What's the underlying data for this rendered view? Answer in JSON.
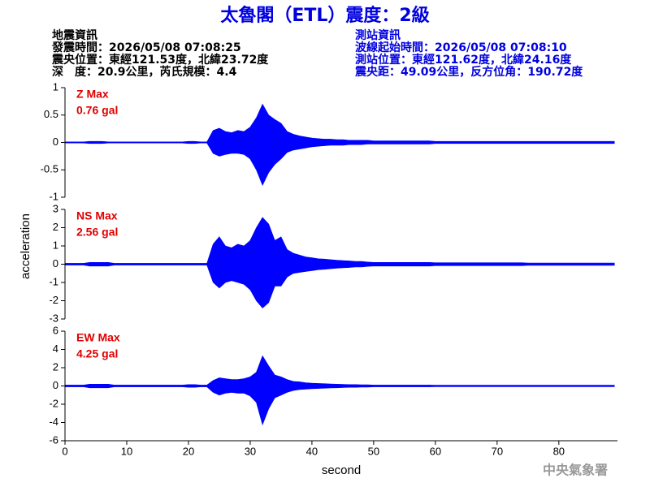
{
  "header": {
    "title": "太魯閣（ETL）震度：2級",
    "left": [
      "地震資訊",
      "發震時間：2026/05/08 07:08:25",
      "震央位置：東經121.53度，北緯23.72度",
      "深　度：20.9公里，芮氏規模：4.4"
    ],
    "right": [
      "測站資訊",
      "波線起始時間：2026/05/08 07:08:10",
      "測站位置：東經121.62度，北緯24.16度",
      "震央距：49.09公里，反方位角：190.72度"
    ],
    "footer": "中央氣象署"
  },
  "chart_data": [
    {
      "type": "area",
      "annotations": [
        "Z Max",
        "0.76 gal"
      ],
      "annotation_color": "#e00000",
      "x": [
        0,
        1,
        2,
        3,
        4,
        5,
        6,
        7,
        8,
        9,
        10,
        11,
        12,
        13,
        14,
        15,
        16,
        17,
        18,
        19,
        20,
        21,
        22,
        23,
        24,
        25,
        26,
        27,
        28,
        29,
        30,
        31,
        32,
        33,
        34,
        35,
        36,
        37,
        38,
        39,
        40,
        41,
        42,
        43,
        44,
        45,
        46,
        47,
        48,
        49,
        50,
        51,
        52,
        53,
        54,
        55,
        56,
        57,
        58,
        59,
        60,
        61,
        62,
        63,
        64,
        65,
        66,
        67,
        68,
        69,
        70,
        71,
        72,
        73,
        74,
        75,
        76,
        77,
        78,
        79,
        80,
        81,
        82,
        83,
        84,
        85,
        86,
        87,
        88,
        89
      ],
      "series": [
        {
          "color": "#0000ff",
          "values": [
            0.01,
            0.01,
            0.01,
            0.01,
            0.02,
            0.02,
            0.02,
            0.01,
            0.01,
            0.01,
            0.01,
            0.01,
            0.01,
            0.01,
            0.01,
            0.01,
            0.01,
            0.01,
            0.01,
            0.01,
            0.02,
            0.02,
            0.01,
            0.01,
            0.22,
            0.26,
            0.2,
            0.18,
            0.22,
            0.2,
            0.28,
            0.45,
            0.7,
            0.5,
            0.42,
            0.35,
            0.2,
            0.15,
            0.12,
            0.1,
            0.08,
            0.07,
            0.06,
            0.06,
            0.05,
            0.05,
            0.04,
            0.04,
            0.04,
            0.04,
            0.03,
            0.03,
            0.03,
            0.03,
            0.03,
            0.03,
            0.03,
            0.03,
            0.03,
            0.03,
            0.02,
            0.02,
            0.02,
            0.02,
            0.02,
            0.02,
            0.02,
            0.02,
            0.02,
            0.02,
            0.02,
            0.02,
            0.02,
            0.02,
            0.02,
            0.02,
            0.02,
            0.02,
            0.02,
            0.02,
            0.02,
            0.02,
            0.02,
            0.02,
            0.02,
            0.02,
            0.02,
            0.02,
            0.02,
            0.02
          ]
        },
        {
          "color": "#0000ff",
          "values": [
            -0.01,
            -0.01,
            -0.01,
            -0.01,
            -0.02,
            -0.02,
            -0.02,
            -0.01,
            -0.01,
            -0.01,
            -0.01,
            -0.01,
            -0.01,
            -0.01,
            -0.01,
            -0.01,
            -0.01,
            -0.01,
            -0.01,
            -0.01,
            -0.02,
            -0.02,
            -0.01,
            -0.01,
            -0.2,
            -0.25,
            -0.22,
            -0.2,
            -0.2,
            -0.22,
            -0.3,
            -0.5,
            -0.78,
            -0.55,
            -0.4,
            -0.3,
            -0.18,
            -0.14,
            -0.12,
            -0.1,
            -0.08,
            -0.07,
            -0.06,
            -0.05,
            -0.05,
            -0.05,
            -0.04,
            -0.04,
            -0.04,
            -0.03,
            -0.03,
            -0.03,
            -0.03,
            -0.03,
            -0.03,
            -0.03,
            -0.03,
            -0.03,
            -0.03,
            -0.03,
            -0.02,
            -0.02,
            -0.02,
            -0.02,
            -0.02,
            -0.02,
            -0.02,
            -0.02,
            -0.02,
            -0.02,
            -0.02,
            -0.02,
            -0.02,
            -0.02,
            -0.02,
            -0.02,
            -0.02,
            -0.02,
            -0.02,
            -0.02,
            -0.02,
            -0.02,
            -0.02,
            -0.02,
            -0.02,
            -0.02,
            -0.02,
            -0.02,
            -0.02,
            -0.02
          ]
        }
      ],
      "xlim": [
        0,
        89.5
      ],
      "ylim": [
        -1,
        1
      ],
      "yticks": [
        -1,
        -0.5,
        0,
        0.5,
        1
      ]
    },
    {
      "type": "area",
      "annotations": [
        "NS Max",
        "2.56 gal"
      ],
      "annotation_color": "#e00000",
      "ylabel": "acceleration",
      "x": [
        0,
        1,
        2,
        3,
        4,
        5,
        6,
        7,
        8,
        9,
        10,
        11,
        12,
        13,
        14,
        15,
        16,
        17,
        18,
        19,
        20,
        21,
        22,
        23,
        24,
        25,
        26,
        27,
        28,
        29,
        30,
        31,
        32,
        33,
        34,
        35,
        36,
        37,
        38,
        39,
        40,
        41,
        42,
        43,
        44,
        45,
        46,
        47,
        48,
        49,
        50,
        51,
        52,
        53,
        54,
        55,
        56,
        57,
        58,
        59,
        60,
        61,
        62,
        63,
        64,
        65,
        66,
        67,
        68,
        69,
        70,
        71,
        72,
        73,
        74,
        75,
        76,
        77,
        78,
        79,
        80,
        81,
        82,
        83,
        84,
        85,
        86,
        87,
        88,
        89
      ],
      "series": [
        {
          "color": "#0000ff",
          "values": [
            0.05,
            0.05,
            0.05,
            0.05,
            0.1,
            0.1,
            0.1,
            0.1,
            0.05,
            0.05,
            0.05,
            0.05,
            0.05,
            0.05,
            0.05,
            0.05,
            0.05,
            0.05,
            0.05,
            0.05,
            0.05,
            0.05,
            0.05,
            0.05,
            1.1,
            1.5,
            1.0,
            0.9,
            1.1,
            1.0,
            1.3,
            2.0,
            2.56,
            2.2,
            1.3,
            1.5,
            0.8,
            0.6,
            0.5,
            0.4,
            0.35,
            0.3,
            0.28,
            0.25,
            0.22,
            0.2,
            0.18,
            0.15,
            0.15,
            0.12,
            0.1,
            0.1,
            0.1,
            0.1,
            0.1,
            0.1,
            0.1,
            0.1,
            0.1,
            0.1,
            0.08,
            0.08,
            0.08,
            0.08,
            0.08,
            0.08,
            0.08,
            0.08,
            0.08,
            0.08,
            0.08,
            0.08,
            0.08,
            0.08,
            0.08,
            0.06,
            0.06,
            0.06,
            0.06,
            0.06,
            0.06,
            0.06,
            0.06,
            0.06,
            0.06,
            0.06,
            0.06,
            0.06,
            0.06,
            0.06
          ]
        },
        {
          "color": "#0000ff",
          "values": [
            -0.05,
            -0.05,
            -0.05,
            -0.05,
            -0.1,
            -0.1,
            -0.1,
            -0.1,
            -0.05,
            -0.05,
            -0.05,
            -0.05,
            -0.05,
            -0.05,
            -0.05,
            -0.05,
            -0.05,
            -0.05,
            -0.05,
            -0.05,
            -0.05,
            -0.05,
            -0.05,
            -0.05,
            -1.0,
            -1.3,
            -1.0,
            -0.9,
            -1.0,
            -1.1,
            -1.4,
            -2.0,
            -2.4,
            -2.1,
            -1.2,
            -1.2,
            -0.7,
            -0.5,
            -0.45,
            -0.4,
            -0.35,
            -0.3,
            -0.28,
            -0.25,
            -0.22,
            -0.2,
            -0.18,
            -0.15,
            -0.15,
            -0.12,
            -0.1,
            -0.1,
            -0.1,
            -0.1,
            -0.1,
            -0.1,
            -0.1,
            -0.1,
            -0.1,
            -0.1,
            -0.08,
            -0.08,
            -0.08,
            -0.08,
            -0.08,
            -0.08,
            -0.08,
            -0.08,
            -0.08,
            -0.08,
            -0.08,
            -0.08,
            -0.08,
            -0.08,
            -0.08,
            -0.06,
            -0.06,
            -0.06,
            -0.06,
            -0.06,
            -0.06,
            -0.06,
            -0.06,
            -0.06,
            -0.06,
            -0.06,
            -0.06,
            -0.06,
            -0.06,
            -0.06
          ]
        }
      ],
      "xlim": [
        0,
        89.5
      ],
      "ylim": [
        -3,
        3
      ],
      "yticks": [
        -3,
        -2,
        -1,
        0,
        1,
        2,
        3
      ]
    },
    {
      "type": "area",
      "annotations": [
        "EW Max",
        "4.25 gal"
      ],
      "annotation_color": "#e00000",
      "xlabel": "second",
      "x": [
        0,
        1,
        2,
        3,
        4,
        5,
        6,
        7,
        8,
        9,
        10,
        11,
        12,
        13,
        14,
        15,
        16,
        17,
        18,
        19,
        20,
        21,
        22,
        23,
        24,
        25,
        26,
        27,
        28,
        29,
        30,
        31,
        32,
        33,
        34,
        35,
        36,
        37,
        38,
        39,
        40,
        41,
        42,
        43,
        44,
        45,
        46,
        47,
        48,
        49,
        50,
        51,
        52,
        53,
        54,
        55,
        56,
        57,
        58,
        59,
        60,
        61,
        62,
        63,
        64,
        65,
        66,
        67,
        68,
        69,
        70,
        71,
        72,
        73,
        74,
        75,
        76,
        77,
        78,
        79,
        80,
        81,
        82,
        83,
        84,
        85,
        86,
        87,
        88,
        89
      ],
      "series": [
        {
          "color": "#0000ff",
          "values": [
            0.1,
            0.1,
            0.1,
            0.1,
            0.2,
            0.2,
            0.2,
            0.2,
            0.1,
            0.1,
            0.1,
            0.1,
            0.1,
            0.1,
            0.1,
            0.1,
            0.1,
            0.1,
            0.1,
            0.1,
            0.15,
            0.15,
            0.1,
            0.1,
            0.6,
            0.9,
            0.8,
            0.7,
            0.7,
            0.8,
            1.0,
            1.5,
            3.3,
            2.2,
            1.2,
            1.0,
            0.7,
            0.5,
            0.45,
            0.35,
            0.3,
            0.28,
            0.25,
            0.22,
            0.2,
            0.18,
            0.15,
            0.15,
            0.12,
            0.12,
            0.1,
            0.1,
            0.1,
            0.1,
            0.1,
            0.1,
            0.1,
            0.1,
            0.1,
            0.1,
            0.08,
            0.08,
            0.08,
            0.08,
            0.08,
            0.08,
            0.08,
            0.08,
            0.08,
            0.08,
            0.08,
            0.08,
            0.08,
            0.08,
            0.08,
            0.08,
            0.08,
            0.08,
            0.08,
            0.08,
            0.08,
            0.08,
            0.08,
            0.08,
            0.08,
            0.08,
            0.08,
            0.08,
            0.08,
            0.08
          ]
        },
        {
          "color": "#0000ff",
          "values": [
            -0.1,
            -0.1,
            -0.1,
            -0.1,
            -0.2,
            -0.2,
            -0.2,
            -0.2,
            -0.1,
            -0.1,
            -0.1,
            -0.1,
            -0.1,
            -0.1,
            -0.1,
            -0.1,
            -0.1,
            -0.1,
            -0.1,
            -0.1,
            -0.15,
            -0.15,
            -0.1,
            -0.1,
            -0.7,
            -1.0,
            -0.8,
            -0.7,
            -0.8,
            -0.8,
            -1.1,
            -1.8,
            -4.25,
            -2.5,
            -1.3,
            -1.0,
            -0.7,
            -0.5,
            -0.4,
            -0.35,
            -0.3,
            -0.28,
            -0.25,
            -0.22,
            -0.2,
            -0.18,
            -0.15,
            -0.15,
            -0.12,
            -0.12,
            -0.1,
            -0.1,
            -0.1,
            -0.1,
            -0.1,
            -0.1,
            -0.1,
            -0.1,
            -0.1,
            -0.1,
            -0.08,
            -0.08,
            -0.08,
            -0.08,
            -0.08,
            -0.08,
            -0.08,
            -0.08,
            -0.08,
            -0.08,
            -0.08,
            -0.08,
            -0.08,
            -0.08,
            -0.08,
            -0.08,
            -0.08,
            -0.08,
            -0.08,
            -0.08,
            -0.08,
            -0.08,
            -0.08,
            -0.08,
            -0.08,
            -0.08,
            -0.08,
            -0.08,
            -0.08,
            -0.08
          ]
        }
      ],
      "xlim": [
        0,
        89.5
      ],
      "ylim": [
        -6,
        6
      ],
      "yticks": [
        -6,
        -4,
        -2,
        0,
        2,
        4,
        6
      ],
      "xticks": [
        0,
        10,
        20,
        30,
        40,
        50,
        60,
        70,
        80
      ]
    }
  ]
}
